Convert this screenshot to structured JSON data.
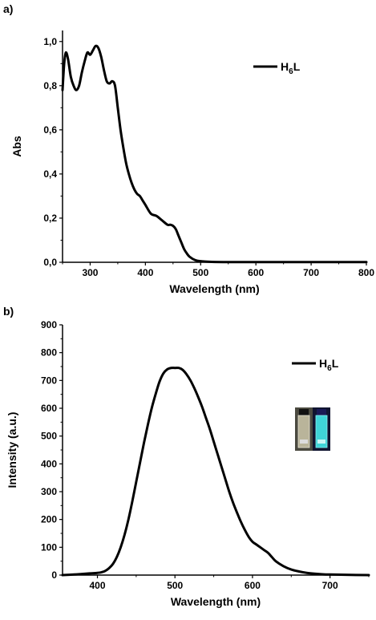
{
  "chart_data": [
    {
      "type": "line",
      "panel_label": "a)",
      "xlabel": "Wavelength (nm)",
      "ylabel": "Abs",
      "xlim": [
        250,
        800
      ],
      "ylim": [
        0,
        1.05
      ],
      "xticks": [
        300,
        400,
        500,
        600,
        700,
        800
      ],
      "xtick_labels": [
        "300",
        "400",
        "500",
        "600",
        "700",
        "800"
      ],
      "yticks": [
        0,
        0.2,
        0.4,
        0.6,
        0.8,
        1.0
      ],
      "ytick_labels": [
        "0,0",
        "0,2",
        "0,4",
        "0,6",
        "0,8",
        "1,0"
      ],
      "grid": false,
      "legend_position": "top-right",
      "series": [
        {
          "name": "H6L",
          "legend_main": "H",
          "legend_sub": "6",
          "legend_tail": "L",
          "color": "#000000",
          "x": [
            250,
            253,
            256,
            260,
            265,
            270,
            275,
            280,
            285,
            290,
            295,
            300,
            305,
            310,
            315,
            320,
            325,
            330,
            335,
            340,
            345,
            350,
            355,
            360,
            365,
            370,
            375,
            380,
            385,
            390,
            395,
            400,
            410,
            420,
            430,
            440,
            445,
            450,
            455,
            460,
            465,
            470,
            475,
            480,
            490,
            500,
            520,
            550,
            600,
            650,
            700,
            750,
            800
          ],
          "y": [
            0.78,
            0.9,
            0.95,
            0.92,
            0.84,
            0.8,
            0.78,
            0.8,
            0.86,
            0.91,
            0.95,
            0.94,
            0.96,
            0.98,
            0.97,
            0.93,
            0.87,
            0.82,
            0.81,
            0.82,
            0.8,
            0.7,
            0.6,
            0.52,
            0.45,
            0.4,
            0.36,
            0.33,
            0.31,
            0.3,
            0.28,
            0.26,
            0.22,
            0.21,
            0.19,
            0.17,
            0.17,
            0.165,
            0.15,
            0.12,
            0.09,
            0.06,
            0.04,
            0.025,
            0.01,
            0.005,
            0.002,
            0.001,
            0.001,
            0.001,
            0.001,
            0.001,
            0.001
          ]
        }
      ]
    },
    {
      "type": "line",
      "panel_label": "b)",
      "xlabel": "Wavelength (nm)",
      "ylabel": "Intensity (a.u.)",
      "xlim": [
        355,
        750
      ],
      "ylim": [
        0,
        900
      ],
      "xticks": [
        400,
        500,
        600,
        700
      ],
      "xtick_labels": [
        "400",
        "500",
        "600",
        "700"
      ],
      "yticks": [
        0,
        100,
        200,
        300,
        400,
        500,
        600,
        700,
        800,
        900
      ],
      "ytick_labels": [
        "0",
        "100",
        "200",
        "300",
        "400",
        "500",
        "600",
        "700",
        "800",
        "900"
      ],
      "grid": false,
      "legend_position": "top-right",
      "inset_image": "photo of two vials under daylight and UV light",
      "series": [
        {
          "name": "H6L",
          "legend_main": "H",
          "legend_sub": "6",
          "legend_tail": "L",
          "color": "#000000",
          "x": [
            355,
            370,
            380,
            390,
            400,
            405,
            410,
            415,
            420,
            425,
            430,
            435,
            440,
            445,
            450,
            455,
            460,
            465,
            470,
            475,
            480,
            485,
            490,
            495,
            500,
            505,
            510,
            515,
            520,
            525,
            530,
            535,
            540,
            545,
            550,
            555,
            560,
            565,
            570,
            575,
            580,
            585,
            590,
            595,
            600,
            605,
            610,
            615,
            620,
            625,
            630,
            640,
            650,
            660,
            670,
            680,
            690,
            700,
            720,
            750
          ],
          "y": [
            0,
            2,
            4,
            6,
            8,
            10,
            15,
            25,
            40,
            65,
            100,
            145,
            200,
            265,
            335,
            405,
            475,
            540,
            600,
            650,
            695,
            725,
            740,
            745,
            745,
            745,
            738,
            722,
            700,
            672,
            640,
            605,
            565,
            525,
            480,
            435,
            390,
            345,
            300,
            260,
            225,
            192,
            163,
            138,
            120,
            110,
            100,
            90,
            80,
            65,
            50,
            32,
            20,
            13,
            8,
            5,
            3,
            2,
            1,
            0
          ]
        }
      ]
    }
  ]
}
